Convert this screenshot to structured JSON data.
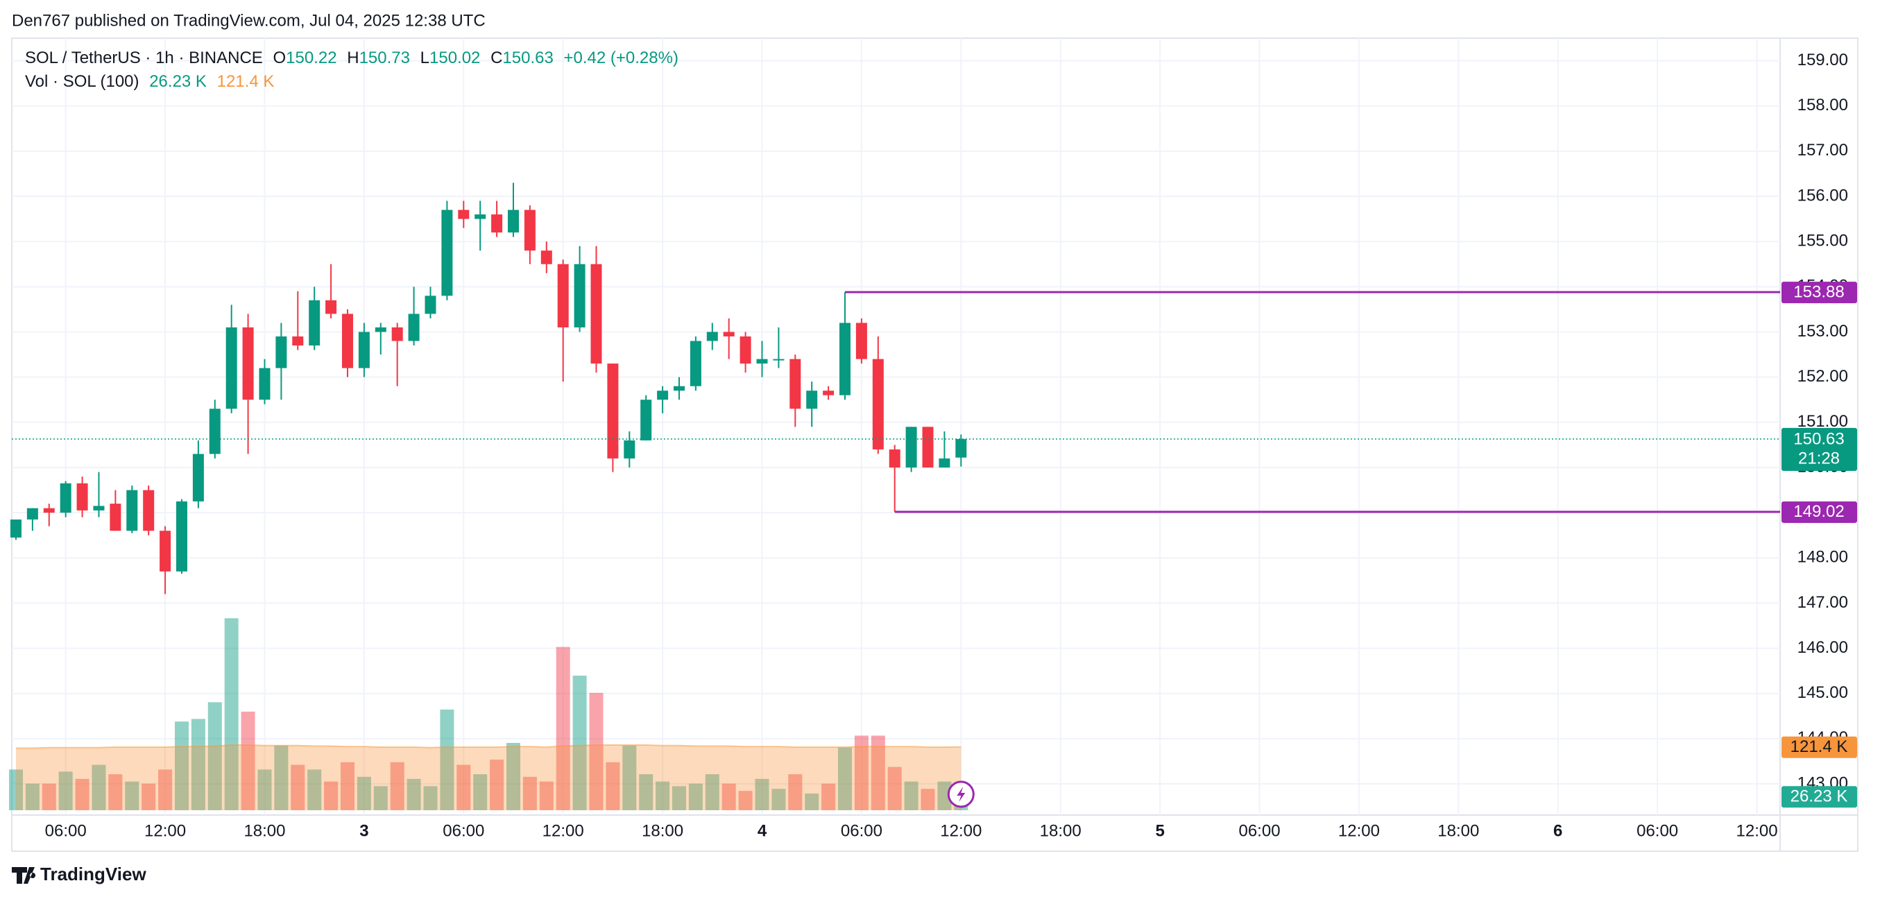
{
  "header": {
    "published": "Den767 published on TradingView.com, Jul 04, 2025 12:38 UTC"
  },
  "footer": {
    "brand": "TradingView"
  },
  "chart_data": {
    "type": "candlestick",
    "legend": {
      "symbol": "SOL / TetherUS · 1h · BINANCE",
      "o_label": "O",
      "open": "150.22",
      "h_label": "H",
      "high": "150.73",
      "l_label": "L",
      "low": "150.02",
      "c_label": "C",
      "close": "150.63",
      "change": "+0.42 (+0.28%)",
      "volume_title": "Vol · SOL (100)",
      "volume": "26.23 K",
      "volume_ma": "121.4 K"
    },
    "up_color": "#089981",
    "down_color": "#f23645",
    "level_color": "#9c27b0",
    "ma_color": "#f7953b",
    "open": [
      148.45,
      148.85,
      149.1,
      149.0,
      149.65,
      149.05,
      149.2,
      148.6,
      149.5,
      148.6,
      147.7,
      149.25,
      150.3,
      151.3,
      153.1,
      151.5,
      152.2,
      152.9,
      152.7,
      153.7,
      153.4,
      152.2,
      153.0,
      153.1,
      152.8,
      153.4,
      153.8,
      155.7,
      155.5,
      155.6,
      155.2,
      155.7,
      154.8,
      154.5,
      153.1,
      154.5,
      152.3,
      150.2,
      150.6,
      151.5,
      151.7,
      151.8,
      152.8,
      153.0,
      152.9,
      152.3,
      152.4,
      152.4,
      151.3,
      151.7,
      151.6,
      153.2,
      152.4,
      150.4,
      150.0,
      150.9,
      150.0,
      150.22
    ],
    "high": [
      148.8,
      149.1,
      149.2,
      149.7,
      149.8,
      149.9,
      149.5,
      149.6,
      149.6,
      148.7,
      149.3,
      150.6,
      151.5,
      153.6,
      153.4,
      152.4,
      153.2,
      153.9,
      154.0,
      154.5,
      153.5,
      153.2,
      153.2,
      153.2,
      154.0,
      154.0,
      155.9,
      155.9,
      155.9,
      155.9,
      156.3,
      155.8,
      155.0,
      154.6,
      154.9,
      154.9,
      152.3,
      150.8,
      151.6,
      151.8,
      152.0,
      152.9,
      153.2,
      153.3,
      153.0,
      152.8,
      153.1,
      152.5,
      151.9,
      151.8,
      153.88,
      153.3,
      152.9,
      150.5,
      150.9,
      150.9,
      150.8,
      150.73
    ],
    "low": [
      148.4,
      148.6,
      148.7,
      148.9,
      148.9,
      148.9,
      148.6,
      148.55,
      148.5,
      147.2,
      147.65,
      149.1,
      150.2,
      151.2,
      150.3,
      151.4,
      151.5,
      152.6,
      152.6,
      153.3,
      152.0,
      152.0,
      152.5,
      151.8,
      152.7,
      153.3,
      153.7,
      155.3,
      154.8,
      155.1,
      155.1,
      154.5,
      154.3,
      151.9,
      153.0,
      152.1,
      149.9,
      150.0,
      150.6,
      151.2,
      151.5,
      151.7,
      152.6,
      152.4,
      152.1,
      152.0,
      152.2,
      150.9,
      150.9,
      151.5,
      151.5,
      152.3,
      150.3,
      149.02,
      149.9,
      150.0,
      150.0,
      150.02
    ],
    "close": [
      148.85,
      149.1,
      149.0,
      149.65,
      149.05,
      149.15,
      148.6,
      149.5,
      148.6,
      147.7,
      149.25,
      150.3,
      151.3,
      153.1,
      151.5,
      152.2,
      152.9,
      152.7,
      153.7,
      153.4,
      152.2,
      153.0,
      153.1,
      152.8,
      153.4,
      153.8,
      155.7,
      155.5,
      155.6,
      155.2,
      155.7,
      154.8,
      154.5,
      153.1,
      154.5,
      152.3,
      150.2,
      150.6,
      151.5,
      151.7,
      151.8,
      152.8,
      153.0,
      152.9,
      152.3,
      152.4,
      152.4,
      151.3,
      151.7,
      151.6,
      153.2,
      152.4,
      150.4,
      150.0,
      150.9,
      150.0,
      150.2,
      150.63
    ],
    "volume": [
      78,
      51,
      51,
      74,
      60,
      87,
      69,
      55,
      51,
      78,
      170,
      175,
      207,
      368,
      189,
      78,
      124,
      87,
      78,
      55,
      92,
      64,
      46,
      92,
      60,
      46,
      193,
      87,
      69,
      97,
      129,
      64,
      55,
      313,
      258,
      225,
      92,
      124,
      69,
      55,
      46,
      51,
      69,
      51,
      37,
      60,
      41,
      69,
      32,
      51,
      120,
      143,
      143,
      83,
      55,
      41,
      55,
      26.23
    ],
    "volume_ma_values": [
      119,
      119,
      120,
      120,
      120,
      120,
      121,
      121,
      121,
      121,
      122,
      122,
      123,
      125,
      125,
      124,
      124,
      124,
      123,
      123,
      122,
      122,
      121,
      121,
      121,
      120,
      121,
      121,
      121,
      121,
      122,
      122,
      121,
      123,
      124,
      125,
      125,
      125,
      125,
      124,
      124,
      123,
      123,
      123,
      122,
      122,
      122,
      121,
      121,
      121,
      121,
      122,
      122,
      122,
      122,
      121,
      121,
      121.4
    ],
    "volume_ylim": [
      0,
      500
    ],
    "levels": [
      {
        "value": 153.88
      },
      {
        "value": 149.02
      }
    ],
    "countdown": "21:28",
    "ylim": [
      142.31,
      159.5
    ],
    "yticks": [
      {
        "value": 143,
        "label": "143.00"
      },
      {
        "value": 144,
        "label": "144.00"
      },
      {
        "value": 145,
        "label": "145.00"
      },
      {
        "value": 146,
        "label": "146.00"
      },
      {
        "value": 147,
        "label": "147.00"
      },
      {
        "value": 148,
        "label": "148.00"
      },
      {
        "value": 149,
        "label": "149.00"
      },
      {
        "value": 150,
        "label": "150.00"
      },
      {
        "value": 151,
        "label": "151.00"
      },
      {
        "value": 152,
        "label": "152.00"
      },
      {
        "value": 153,
        "label": "153.00"
      },
      {
        "value": 154,
        "label": "154.00"
      },
      {
        "value": 155,
        "label": "155.00"
      },
      {
        "value": 156,
        "label": "156.00"
      },
      {
        "value": 157,
        "label": "157.00"
      },
      {
        "value": 158,
        "label": "158.00"
      },
      {
        "value": 159,
        "label": "159.00"
      }
    ],
    "xlim": [
      -0.25,
      106.4
    ],
    "xticks": [
      {
        "value": 3,
        "label": "06:00"
      },
      {
        "value": 9,
        "label": "12:00"
      },
      {
        "value": 15,
        "label": "18:00"
      },
      {
        "value": 21,
        "label": "3"
      },
      {
        "value": 27,
        "label": "06:00"
      },
      {
        "value": 33,
        "label": "12:00"
      },
      {
        "value": 39,
        "label": "18:00"
      },
      {
        "value": 45,
        "label": "4"
      },
      {
        "value": 51,
        "label": "06:00"
      },
      {
        "value": 57,
        "label": "12:00"
      },
      {
        "value": 63,
        "label": "18:00"
      },
      {
        "value": 69,
        "label": "5"
      },
      {
        "value": 75,
        "label": "06:00"
      },
      {
        "value": 81,
        "label": "12:00"
      },
      {
        "value": 87,
        "label": "18:00"
      },
      {
        "value": 93,
        "label": "6"
      },
      {
        "value": 99,
        "label": "06:00"
      },
      {
        "value": 105,
        "label": "12:00"
      }
    ],
    "grid": true
  }
}
